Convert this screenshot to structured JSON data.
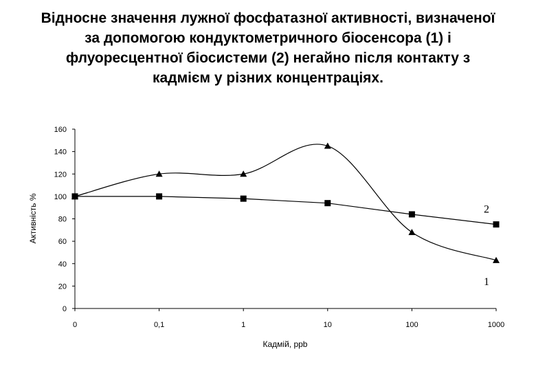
{
  "title_lines": [
    "Відносне значення лужної фосфатазної активності, визначеної",
    "за допомогою кондуктометричного біосенсора (1) і",
    "флуоресцентної біосистеми (2) негайно після контакту з",
    "кадмієм у різних концентраціях."
  ],
  "chart_data": {
    "type": "line",
    "title": "Відносне значення лужної фосфатазної активності, визначеної за допомогою кондуктометричного біосенсора (1) і флуоресцентної біосистеми (2) негайно після контакту з кадмієм у різних концентраціях.",
    "xlabel": "Кадмій, ppb",
    "ylabel": "Активність %",
    "categories": [
      "0",
      "0,1",
      "1",
      "10",
      "100",
      "1000"
    ],
    "ylim": [
      0,
      160
    ],
    "yticks": [
      0,
      20,
      40,
      60,
      80,
      100,
      120,
      140,
      160
    ],
    "grid": false,
    "legend": "none",
    "series": [
      {
        "name": "1",
        "marker": "triangle",
        "smooth": true,
        "values": [
          100,
          120,
          120,
          145,
          68,
          43
        ]
      },
      {
        "name": "2",
        "marker": "square",
        "smooth": false,
        "values": [
          100,
          100,
          98,
          94,
          84,
          75
        ]
      }
    ]
  }
}
